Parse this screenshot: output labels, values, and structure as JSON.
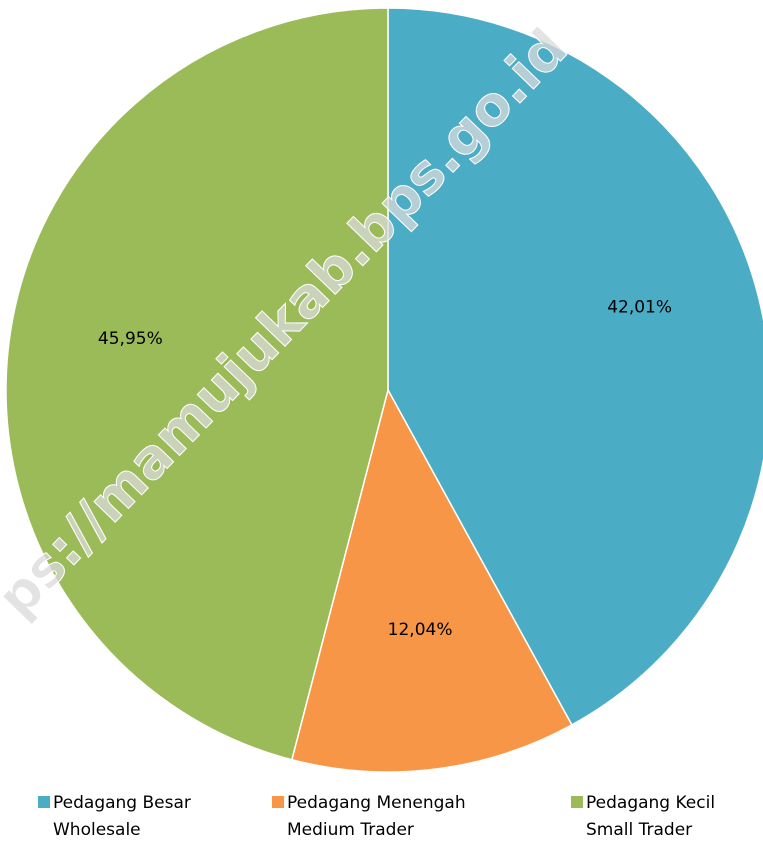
{
  "chart_data": {
    "type": "pie",
    "categories": [
      "Pedagang Besar",
      "Pedagang Menengah",
      "Pedagang Kecil"
    ],
    "categories_en": [
      "Wholesale",
      "Medium Trader",
      "Small Trader"
    ],
    "values": [
      42.01,
      12.04,
      45.95
    ],
    "value_labels": [
      "42,01%",
      "12,04%",
      "45,95%"
    ],
    "colors": [
      "#4bacc6",
      "#f79646",
      "#9bbb59"
    ],
    "legend": "bottom",
    "watermark": "ps://mamujukab.bps.go.id"
  }
}
